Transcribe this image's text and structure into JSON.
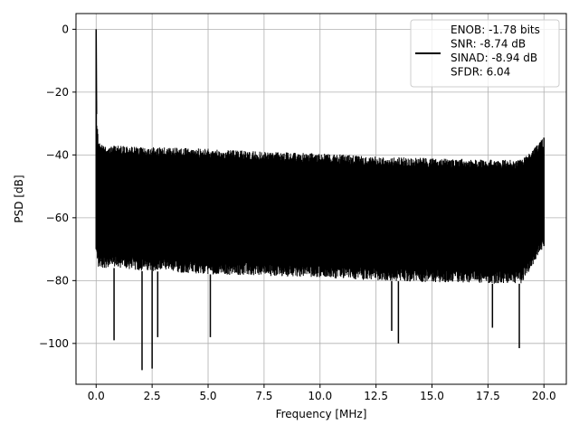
{
  "chart_data": {
    "type": "line",
    "title": "",
    "xlabel": "Frequency [MHz]",
    "ylabel": "PSD [dB]",
    "xlim": [
      -0.9,
      21.0
    ],
    "ylim": [
      -113,
      5
    ],
    "xticks": [
      0.0,
      2.5,
      5.0,
      7.5,
      10.0,
      12.5,
      15.0,
      17.5,
      20.0
    ],
    "xtick_labels": [
      "0.0",
      "2.5",
      "5.0",
      "7.5",
      "10.0",
      "12.5",
      "15.0",
      "17.5",
      "20.0"
    ],
    "yticks": [
      0,
      -20,
      -40,
      -60,
      -80,
      -100
    ],
    "ytick_labels": [
      "0",
      "−20",
      "−40",
      "−60",
      "−80",
      "−100"
    ],
    "grid": true,
    "legend_position": "top-right",
    "series": [
      {
        "color": "#000000",
        "description_points": {
          "x": [
            0.0,
            0.02,
            0.1,
            0.2,
            0.5,
            1.0,
            2.0,
            2.5,
            5.0,
            7.5,
            10.0,
            12.5,
            15.0,
            17.5,
            19.0,
            20.0
          ],
          "upper_envelope": [
            0.0,
            -27,
            -35,
            -36.5,
            -37,
            -37,
            -37.5,
            -37.5,
            -38,
            -39,
            -39.5,
            -40.5,
            -41,
            -41.5,
            -41.5,
            -34.5
          ],
          "lower_envelope": [
            -70,
            -73,
            -76,
            -76,
            -76,
            -76,
            -77,
            -77,
            -78,
            -78.5,
            -79,
            -80,
            -80.5,
            -81,
            -81,
            -69
          ]
        },
        "notable_dips": [
          {
            "x": 0.8,
            "y": -99
          },
          {
            "x": 2.05,
            "y": -108.5
          },
          {
            "x": 2.5,
            "y": -108
          },
          {
            "x": 2.75,
            "y": -98
          },
          {
            "x": 5.1,
            "y": -98
          },
          {
            "x": 13.2,
            "y": -96
          },
          {
            "x": 13.5,
            "y": -100
          },
          {
            "x": 18.9,
            "y": -101.5
          },
          {
            "x": 17.7,
            "y": -95
          }
        ]
      }
    ],
    "legend_text": [
      "ENOB: -1.78 bits",
      "SNR: -8.74 dB",
      "SINAD: -8.94 dB",
      "SFDR: 6.04"
    ]
  }
}
